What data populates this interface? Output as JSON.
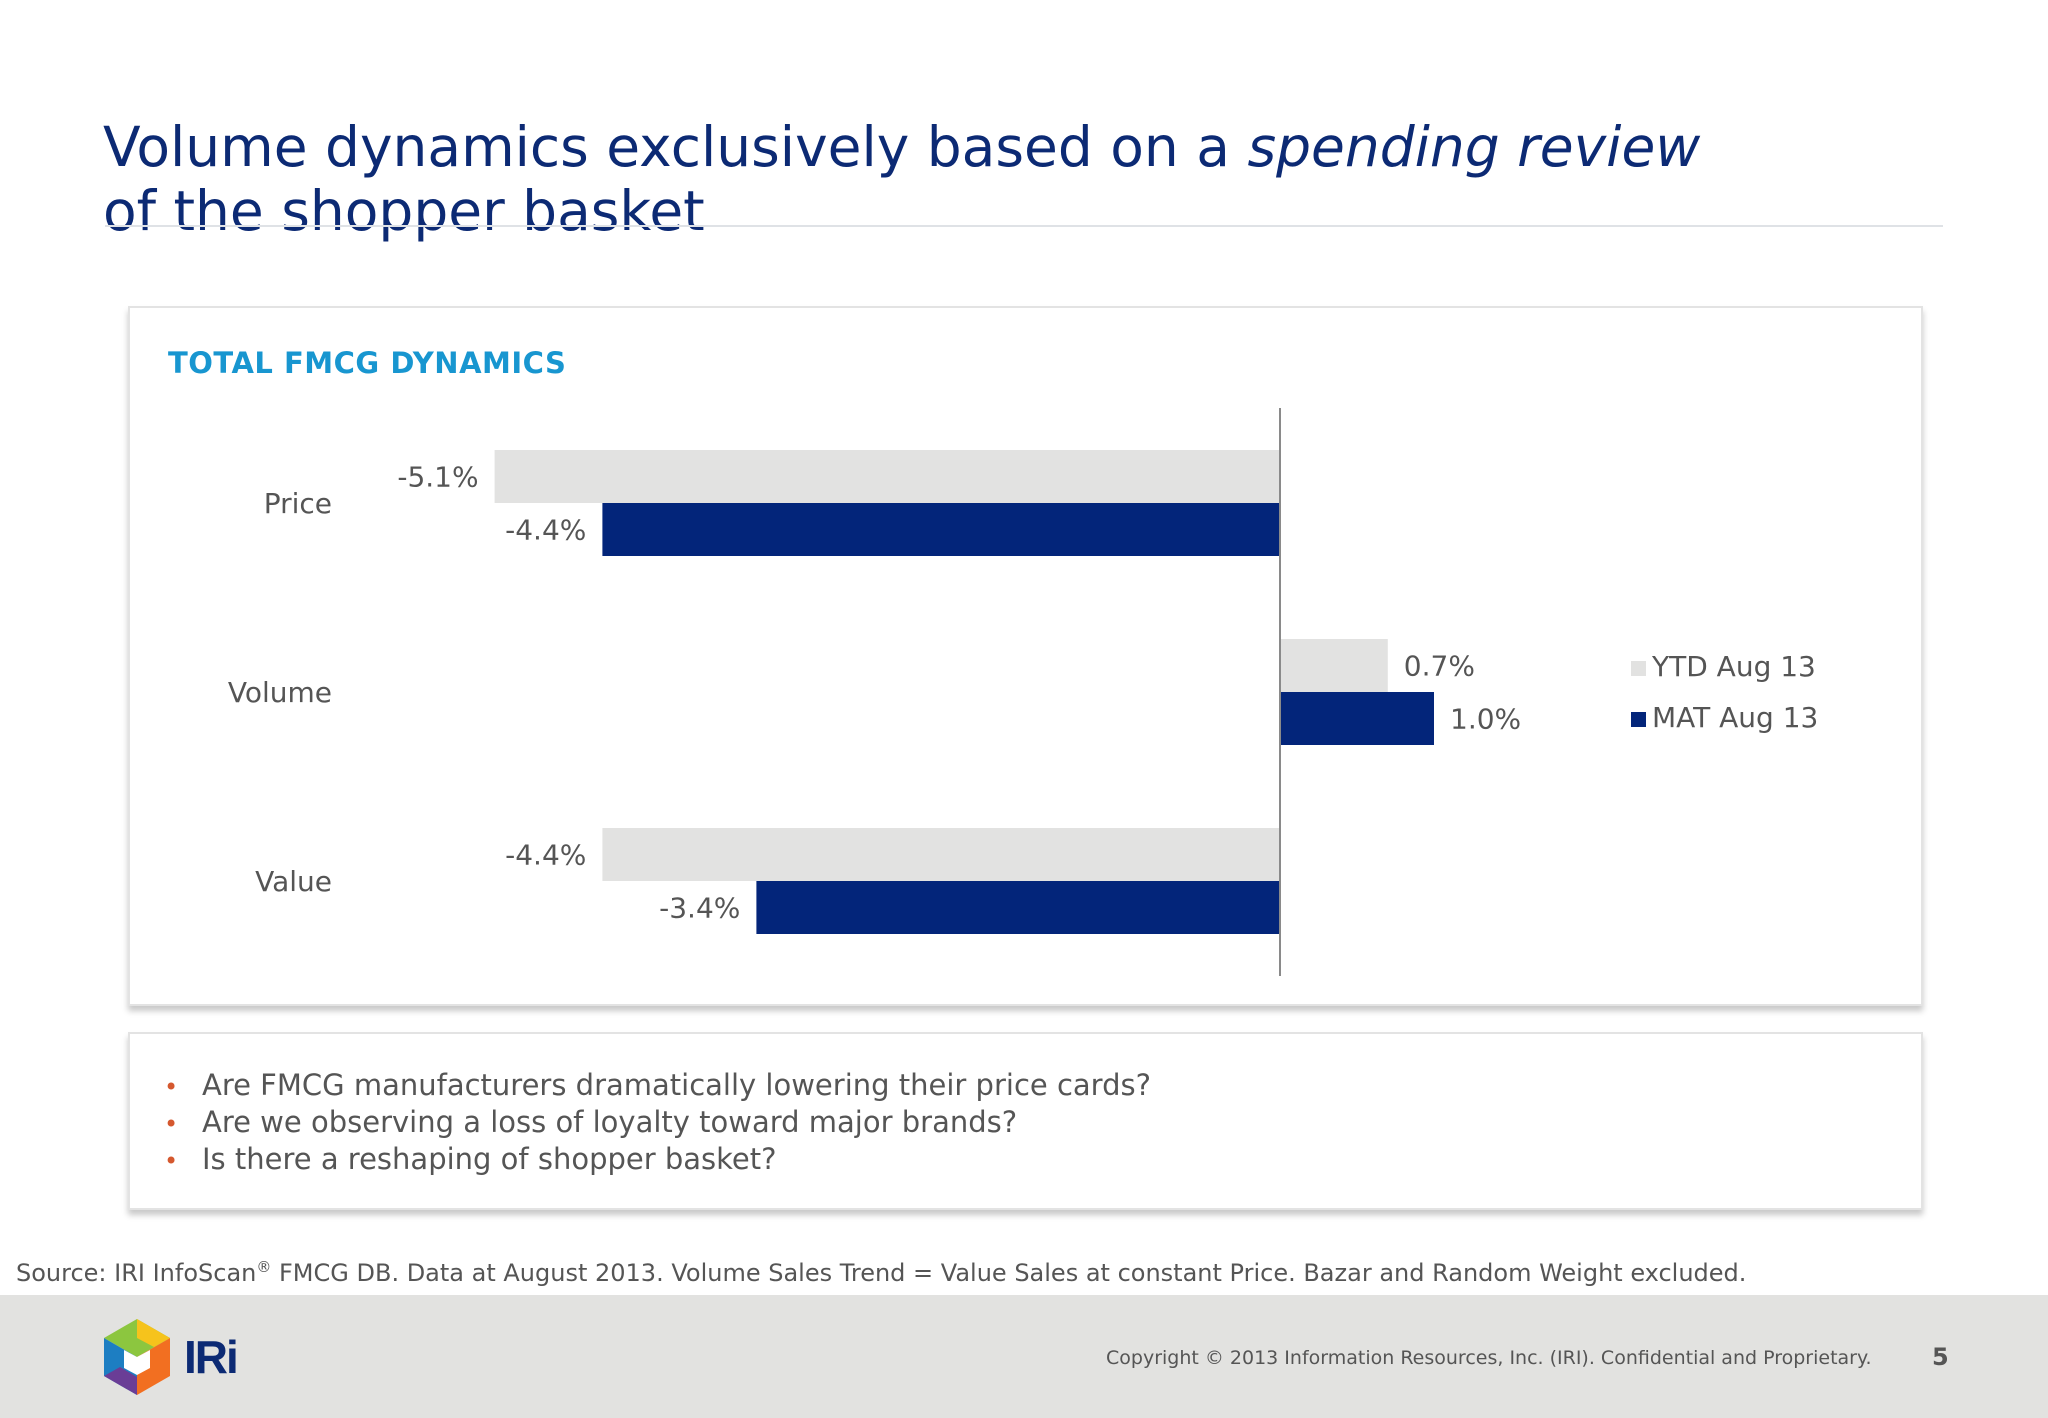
{
  "slide": {
    "title_part1": "Volume dynamics exclusively based on a ",
    "title_italic": "spending review",
    "title_part2": "of the shopper basket"
  },
  "chart_data": {
    "type": "bar",
    "orientation": "horizontal",
    "title": "TOTAL FMCG DYNAMICS",
    "categories": [
      "Price",
      "Volume",
      "Value"
    ],
    "series": [
      {
        "name": "YTD Aug 13",
        "values": [
          -5.1,
          0.7,
          -4.4
        ],
        "labels": [
          "-5.1%",
          "0.7%",
          "-4.4%"
        ],
        "color": "#e2e2e1"
      },
      {
        "name": "MAT Aug 13",
        "values": [
          -4.4,
          1.0,
          -3.4
        ],
        "labels": [
          "-4.4%",
          "1.0%",
          "-3.4%"
        ],
        "color": "#03257a"
      }
    ],
    "xlim": [
      -6,
      2
    ],
    "grid": false,
    "legend_position": "right"
  },
  "bullets": [
    "Are FMCG manufacturers dramatically lowering their price cards?",
    "Are we observing a loss of loyalty toward major brands?",
    "Is there a reshaping of shopper basket?"
  ],
  "bullet_marker": "•",
  "source": {
    "text_before": "Source: IRI InfoScan",
    "registered": "®",
    "text_after": " FMCG DB. Data at August 2013. Volume Sales Trend = Value Sales at constant Price. Bazar and Random Weight excluded."
  },
  "footer": {
    "logo_text": "IRi",
    "copyright": "Copyright © 2013 Information Resources, Inc. (IRI). Confidential and Proprietary.",
    "page_number": "5"
  },
  "colors": {
    "title": "#0c2a74",
    "heading": "#1896d0",
    "bullet": "#d5582e"
  }
}
